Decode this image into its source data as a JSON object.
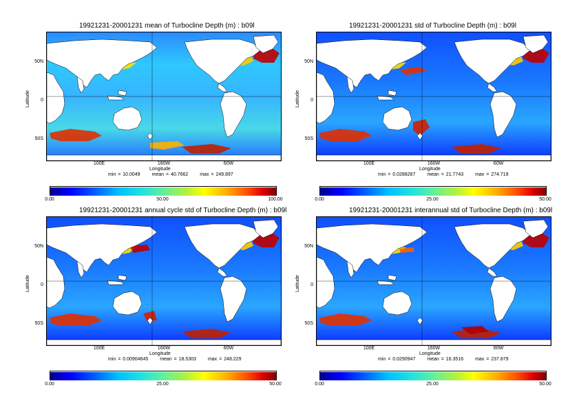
{
  "colorbar_gradient": [
    "#00008f",
    "#0000ff",
    "#0060ff",
    "#00bfff",
    "#20e0e0",
    "#60f0a0",
    "#b0f040",
    "#ffff00",
    "#ffb000",
    "#ff5000",
    "#e00000",
    "#800000"
  ],
  "ocean_pattern_note": "",
  "panels": [
    {
      "title": "19921231-20001231 mean of Turbocline Depth (m) : b09l",
      "ylabel": "Latitude",
      "xlabel": "Longitude",
      "yticks": [
        "50N",
        "0",
        "50S"
      ],
      "xticks": [
        "100E",
        "160W",
        "60W"
      ],
      "stats": {
        "min": "min = 10.0049",
        "mean": "mean = 40.7662",
        "max": "max = 249.897"
      },
      "cbar": {
        "low": "0.00",
        "mid": "50.00",
        "high": "100.00"
      }
    },
    {
      "title": "19921231-20001231 std of Turbocline Depth (m) : b09l",
      "ylabel": "Latitude",
      "xlabel": "Longitude",
      "yticks": [
        "50N",
        "0",
        "50S"
      ],
      "xticks": [
        "100E",
        "160W",
        "60W"
      ],
      "stats": {
        "min": "min = 0.0288287",
        "mean": "mean = 21.7743",
        "max": "max = 274.719"
      },
      "cbar": {
        "low": "0.00",
        "mid": "25.00",
        "high": "50.00"
      }
    },
    {
      "title": "19921231-20001231 annual cycle std of Turbocline Depth (m) : b09l",
      "ylabel": "Latitude",
      "xlabel": "Longitude",
      "yticks": [
        "50N",
        "0",
        "50S"
      ],
      "xticks": [
        "100E",
        "160W",
        "60W"
      ],
      "stats": {
        "min": "min = 0.00904645",
        "mean": "mean = 18.5303",
        "max": "max = 248.229"
      },
      "cbar": {
        "low": "0.00",
        "mid": "25.00",
        "high": "50.00"
      }
    },
    {
      "title": "19921231-20001231 interannual std of Turbocline Depth (m) : b09l",
      "ylabel": "Latitude",
      "xlabel": "Longitude",
      "yticks": [
        "50N",
        "0",
        "50S"
      ],
      "xticks": [
        "100E",
        "160W",
        "60W"
      ],
      "stats": {
        "min": "min = 0.0290947",
        "mean": "mean = 16.3516",
        "max": "max = 237.879"
      },
      "cbar": {
        "low": "0.00",
        "mid": "25.00",
        "high": "50.00"
      }
    }
  ]
}
